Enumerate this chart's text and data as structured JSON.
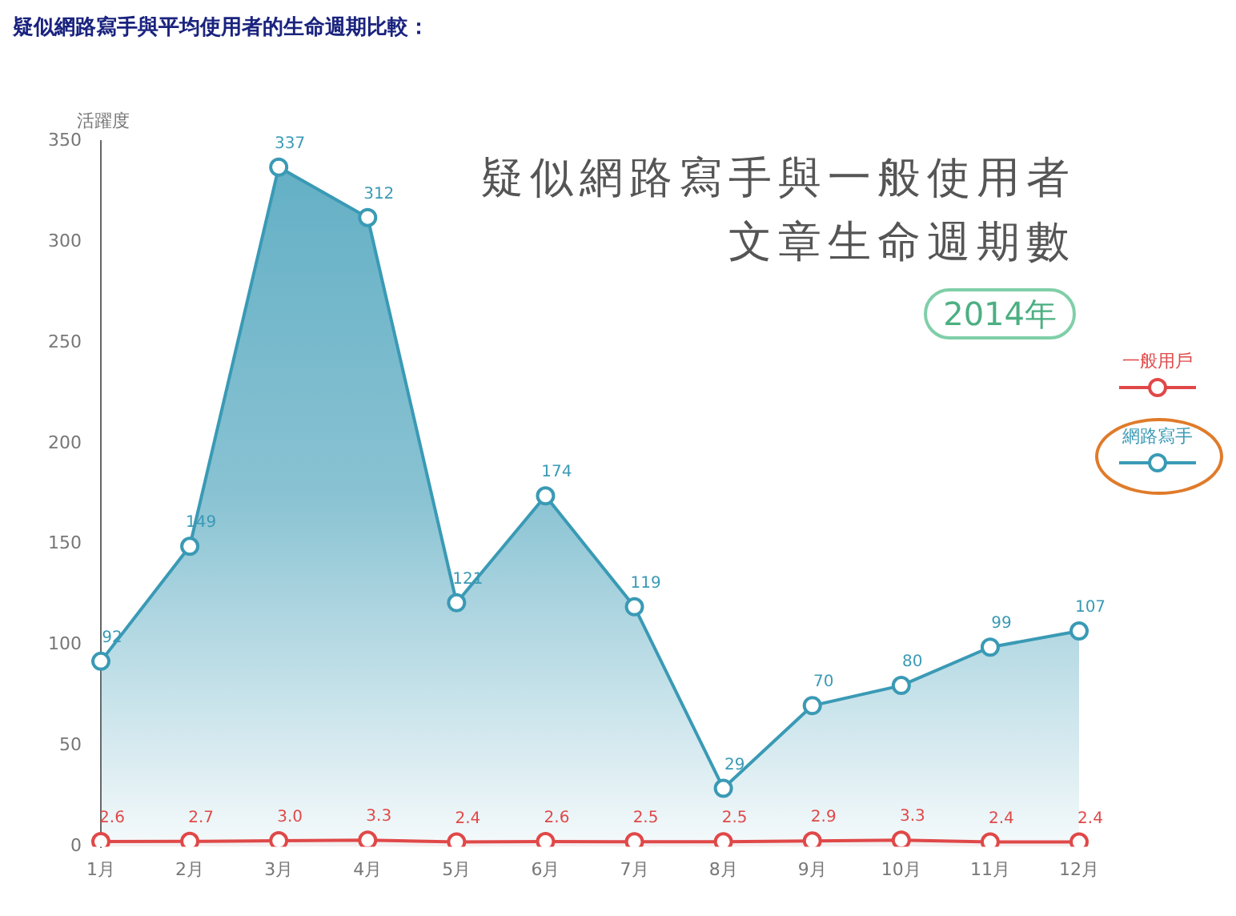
{
  "chart_data": {
    "type": "area",
    "title": "疑似網路寫手與一般使用者文章生命週期數",
    "subtitle": "2014年",
    "ylabel": "活躍度",
    "annotations": [
      "疑似網路寫手與平均使用者的生命週期比較："
    ],
    "categories": [
      "1月",
      "2月",
      "3月",
      "4月",
      "5月",
      "6月",
      "7月",
      "8月",
      "9月",
      "10月",
      "11月",
      "12月"
    ],
    "series": [
      {
        "name": "一般用戶",
        "color": "#e04848",
        "values": [
          2.6,
          2.7,
          3.0,
          3.3,
          2.4,
          2.6,
          2.5,
          2.5,
          2.9,
          3.3,
          2.4,
          2.4
        ],
        "value_labels": [
          "2.6",
          "2.7",
          "3.0",
          "3.3",
          "2.4",
          "2.6",
          "2.5",
          "2.5",
          "2.9",
          "3.3",
          "2.4",
          "2.4"
        ]
      },
      {
        "name": "網路寫手",
        "color": "#3a9ab5",
        "values": [
          92,
          149,
          337,
          312,
          121,
          174,
          119,
          29,
          70,
          80,
          99,
          107
        ],
        "value_labels": [
          "92",
          "149",
          "337",
          "312",
          "121",
          "174",
          "119",
          "29",
          "70",
          "80",
          "99",
          "107"
        ]
      }
    ],
    "ylim": [
      0,
      350
    ],
    "yticks": [
      0,
      50,
      100,
      150,
      200,
      250,
      300,
      350
    ],
    "grid": false,
    "legend": "right",
    "marker": "circle",
    "line_style": "solid"
  }
}
